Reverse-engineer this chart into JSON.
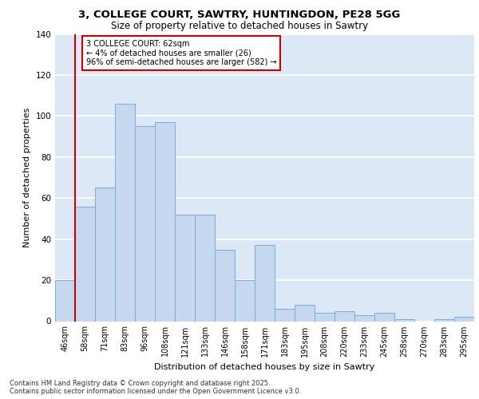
{
  "title_line1": "3, COLLEGE COURT, SAWTRY, HUNTINGDON, PE28 5GG",
  "title_line2": "Size of property relative to detached houses in Sawtry",
  "xlabel": "Distribution of detached houses by size in Sawtry",
  "ylabel": "Number of detached properties",
  "categories": [
    "46sqm",
    "58sqm",
    "71sqm",
    "83sqm",
    "96sqm",
    "108sqm",
    "121sqm",
    "133sqm",
    "146sqm",
    "158sqm",
    "171sqm",
    "183sqm",
    "195sqm",
    "208sqm",
    "220sqm",
    "233sqm",
    "245sqm",
    "258sqm",
    "270sqm",
    "283sqm",
    "295sqm"
  ],
  "values": [
    20,
    56,
    65,
    106,
    95,
    97,
    52,
    52,
    35,
    20,
    37,
    6,
    8,
    4,
    5,
    3,
    4,
    1,
    0,
    1,
    2
  ],
  "bar_color": "#c5d8f0",
  "bar_edge_color": "#7aadd4",
  "background_color": "#dce8f5",
  "grid_color": "#ffffff",
  "vline_x": 0.5,
  "vline_color": "#cc0000",
  "annotation_text": "3 COLLEGE COURT: 62sqm\n← 4% of detached houses are smaller (26)\n96% of semi-detached houses are larger (582) →",
  "annotation_box_color": "#cc0000",
  "ylim": [
    0,
    140
  ],
  "yticks": [
    0,
    20,
    40,
    60,
    80,
    100,
    120,
    140
  ],
  "footer_line1": "Contains HM Land Registry data © Crown copyright and database right 2025.",
  "footer_line2": "Contains public sector information licensed under the Open Government Licence v3.0."
}
